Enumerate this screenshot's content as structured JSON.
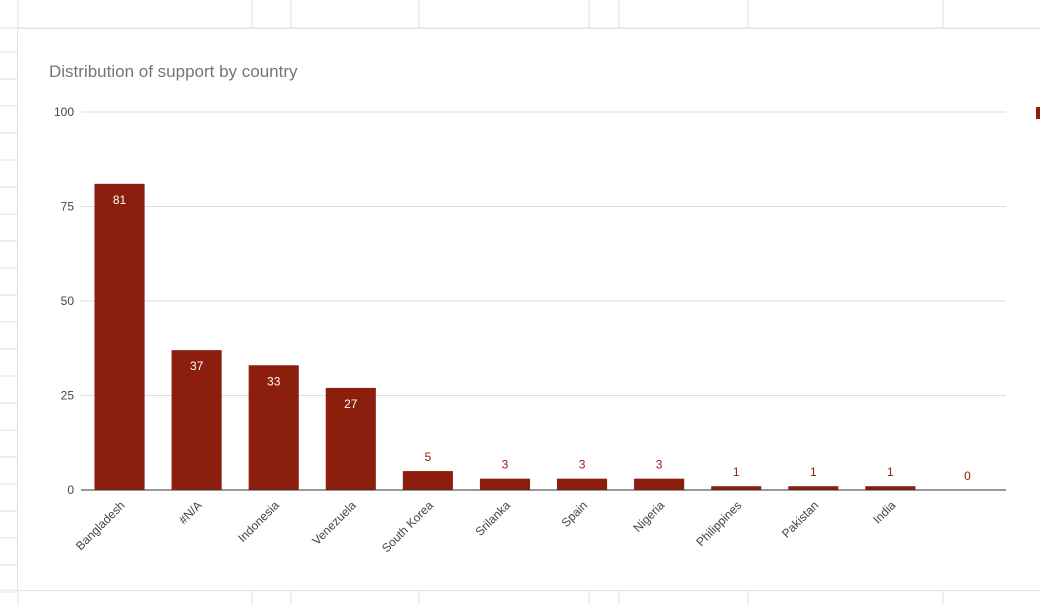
{
  "colors": {
    "bar": "#8b1e0c",
    "label_inside": "#ffffff",
    "label_outside": "#8b1e0c",
    "grid": "#dddddd",
    "baseline": "#333333",
    "axis_text": "#444444",
    "sheet_grid": "#e2e2e2"
  },
  "chart_data": {
    "type": "bar",
    "title": "Distribution of support by country",
    "categories": [
      "Bangladesh",
      "#N/A",
      "Indonesia",
      "Venezuela",
      "South Korea",
      "Srilanka",
      "Spain",
      "Nigeria",
      "Philippines",
      "Pakistan",
      "India",
      ""
    ],
    "values": [
      81,
      37,
      33,
      27,
      5,
      3,
      3,
      3,
      1,
      1,
      1,
      0
    ],
    "ylim": [
      0,
      100
    ],
    "yticks": [
      0,
      25,
      50,
      75,
      100
    ],
    "xlabel": "",
    "ylabel": "",
    "grid": true,
    "data_labels": true,
    "legend_position": "right"
  }
}
